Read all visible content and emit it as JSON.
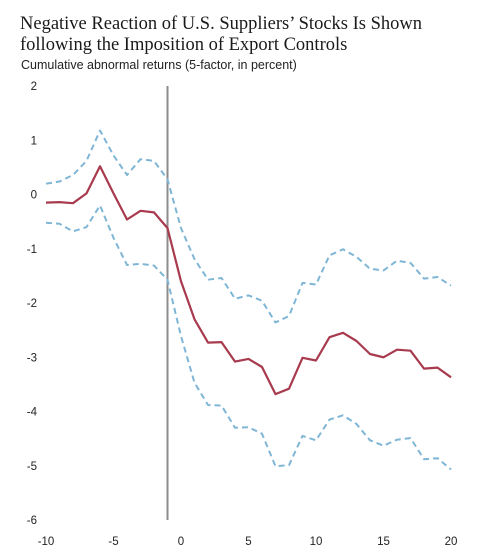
{
  "title_line1": "Negative Reaction of U.S. Suppliers’ Stocks Is Shown",
  "title_line2": "following the Imposition of Export Controls",
  "colors": {
    "estimate": "#a83a4e",
    "band": "#7fb6d6",
    "event_line": "#8c8c8c"
  },
  "chart_data": {
    "type": "line",
    "title": "Negative Reaction of U.S. Suppliers’ Stocks Is Shown following the Imposition of Export Controls",
    "ylabel": "Cumulative abnormal returns (5-factor, in percent)",
    "xlabel": "",
    "xlim": [
      -10,
      20
    ],
    "ylim": [
      -6,
      2
    ],
    "xticks": [
      -10,
      -5,
      0,
      5,
      10,
      15,
      20
    ],
    "yticks": [
      2,
      1,
      0,
      -1,
      -2,
      -3,
      -4,
      -5,
      -6
    ],
    "event_line_x": -1,
    "grid": false,
    "legend": "none",
    "x": [
      -10,
      -9,
      -8,
      -7,
      -6,
      -5,
      -4,
      -3,
      -2,
      -1,
      0,
      1,
      2,
      3,
      4,
      5,
      6,
      7,
      8,
      9,
      10,
      11,
      12,
      13,
      14,
      15,
      16,
      17,
      18,
      19,
      20
    ],
    "series": [
      {
        "style": "solid",
        "color": "#a83a4e",
        "values": [
          -0.15,
          -0.14,
          -0.16,
          0.02,
          0.52,
          0.02,
          -0.46,
          -0.3,
          -0.33,
          -0.62,
          -1.6,
          -2.3,
          -2.73,
          -2.72,
          -3.08,
          -3.03,
          -3.18,
          -3.68,
          -3.58,
          -3.01,
          -3.06,
          -2.63,
          -2.55,
          -2.7,
          -2.94,
          -3.0,
          -2.86,
          -2.88,
          -3.21,
          -3.19,
          -3.37
        ]
      },
      {
        "style": "dashed",
        "color": "#7fb6d6",
        "values": [
          0.2,
          0.24,
          0.36,
          0.62,
          1.18,
          0.72,
          0.36,
          0.65,
          0.62,
          0.28,
          -0.62,
          -1.19,
          -1.57,
          -1.54,
          -1.92,
          -1.86,
          -1.96,
          -2.36,
          -2.24,
          -1.63,
          -1.66,
          -1.12,
          -1.01,
          -1.15,
          -1.37,
          -1.4,
          -1.22,
          -1.26,
          -1.55,
          -1.52,
          -1.68
        ]
      },
      {
        "style": "dashed",
        "color": "#7fb6d6",
        "values": [
          -0.52,
          -0.54,
          -0.68,
          -0.6,
          -0.2,
          -0.8,
          -1.3,
          -1.28,
          -1.31,
          -1.57,
          -2.61,
          -3.47,
          -3.88,
          -3.89,
          -4.3,
          -4.29,
          -4.41,
          -5.01,
          -4.99,
          -4.45,
          -4.53,
          -4.15,
          -4.07,
          -4.23,
          -4.53,
          -4.63,
          -4.52,
          -4.49,
          -4.88,
          -4.86,
          -5.07
        ]
      }
    ]
  }
}
